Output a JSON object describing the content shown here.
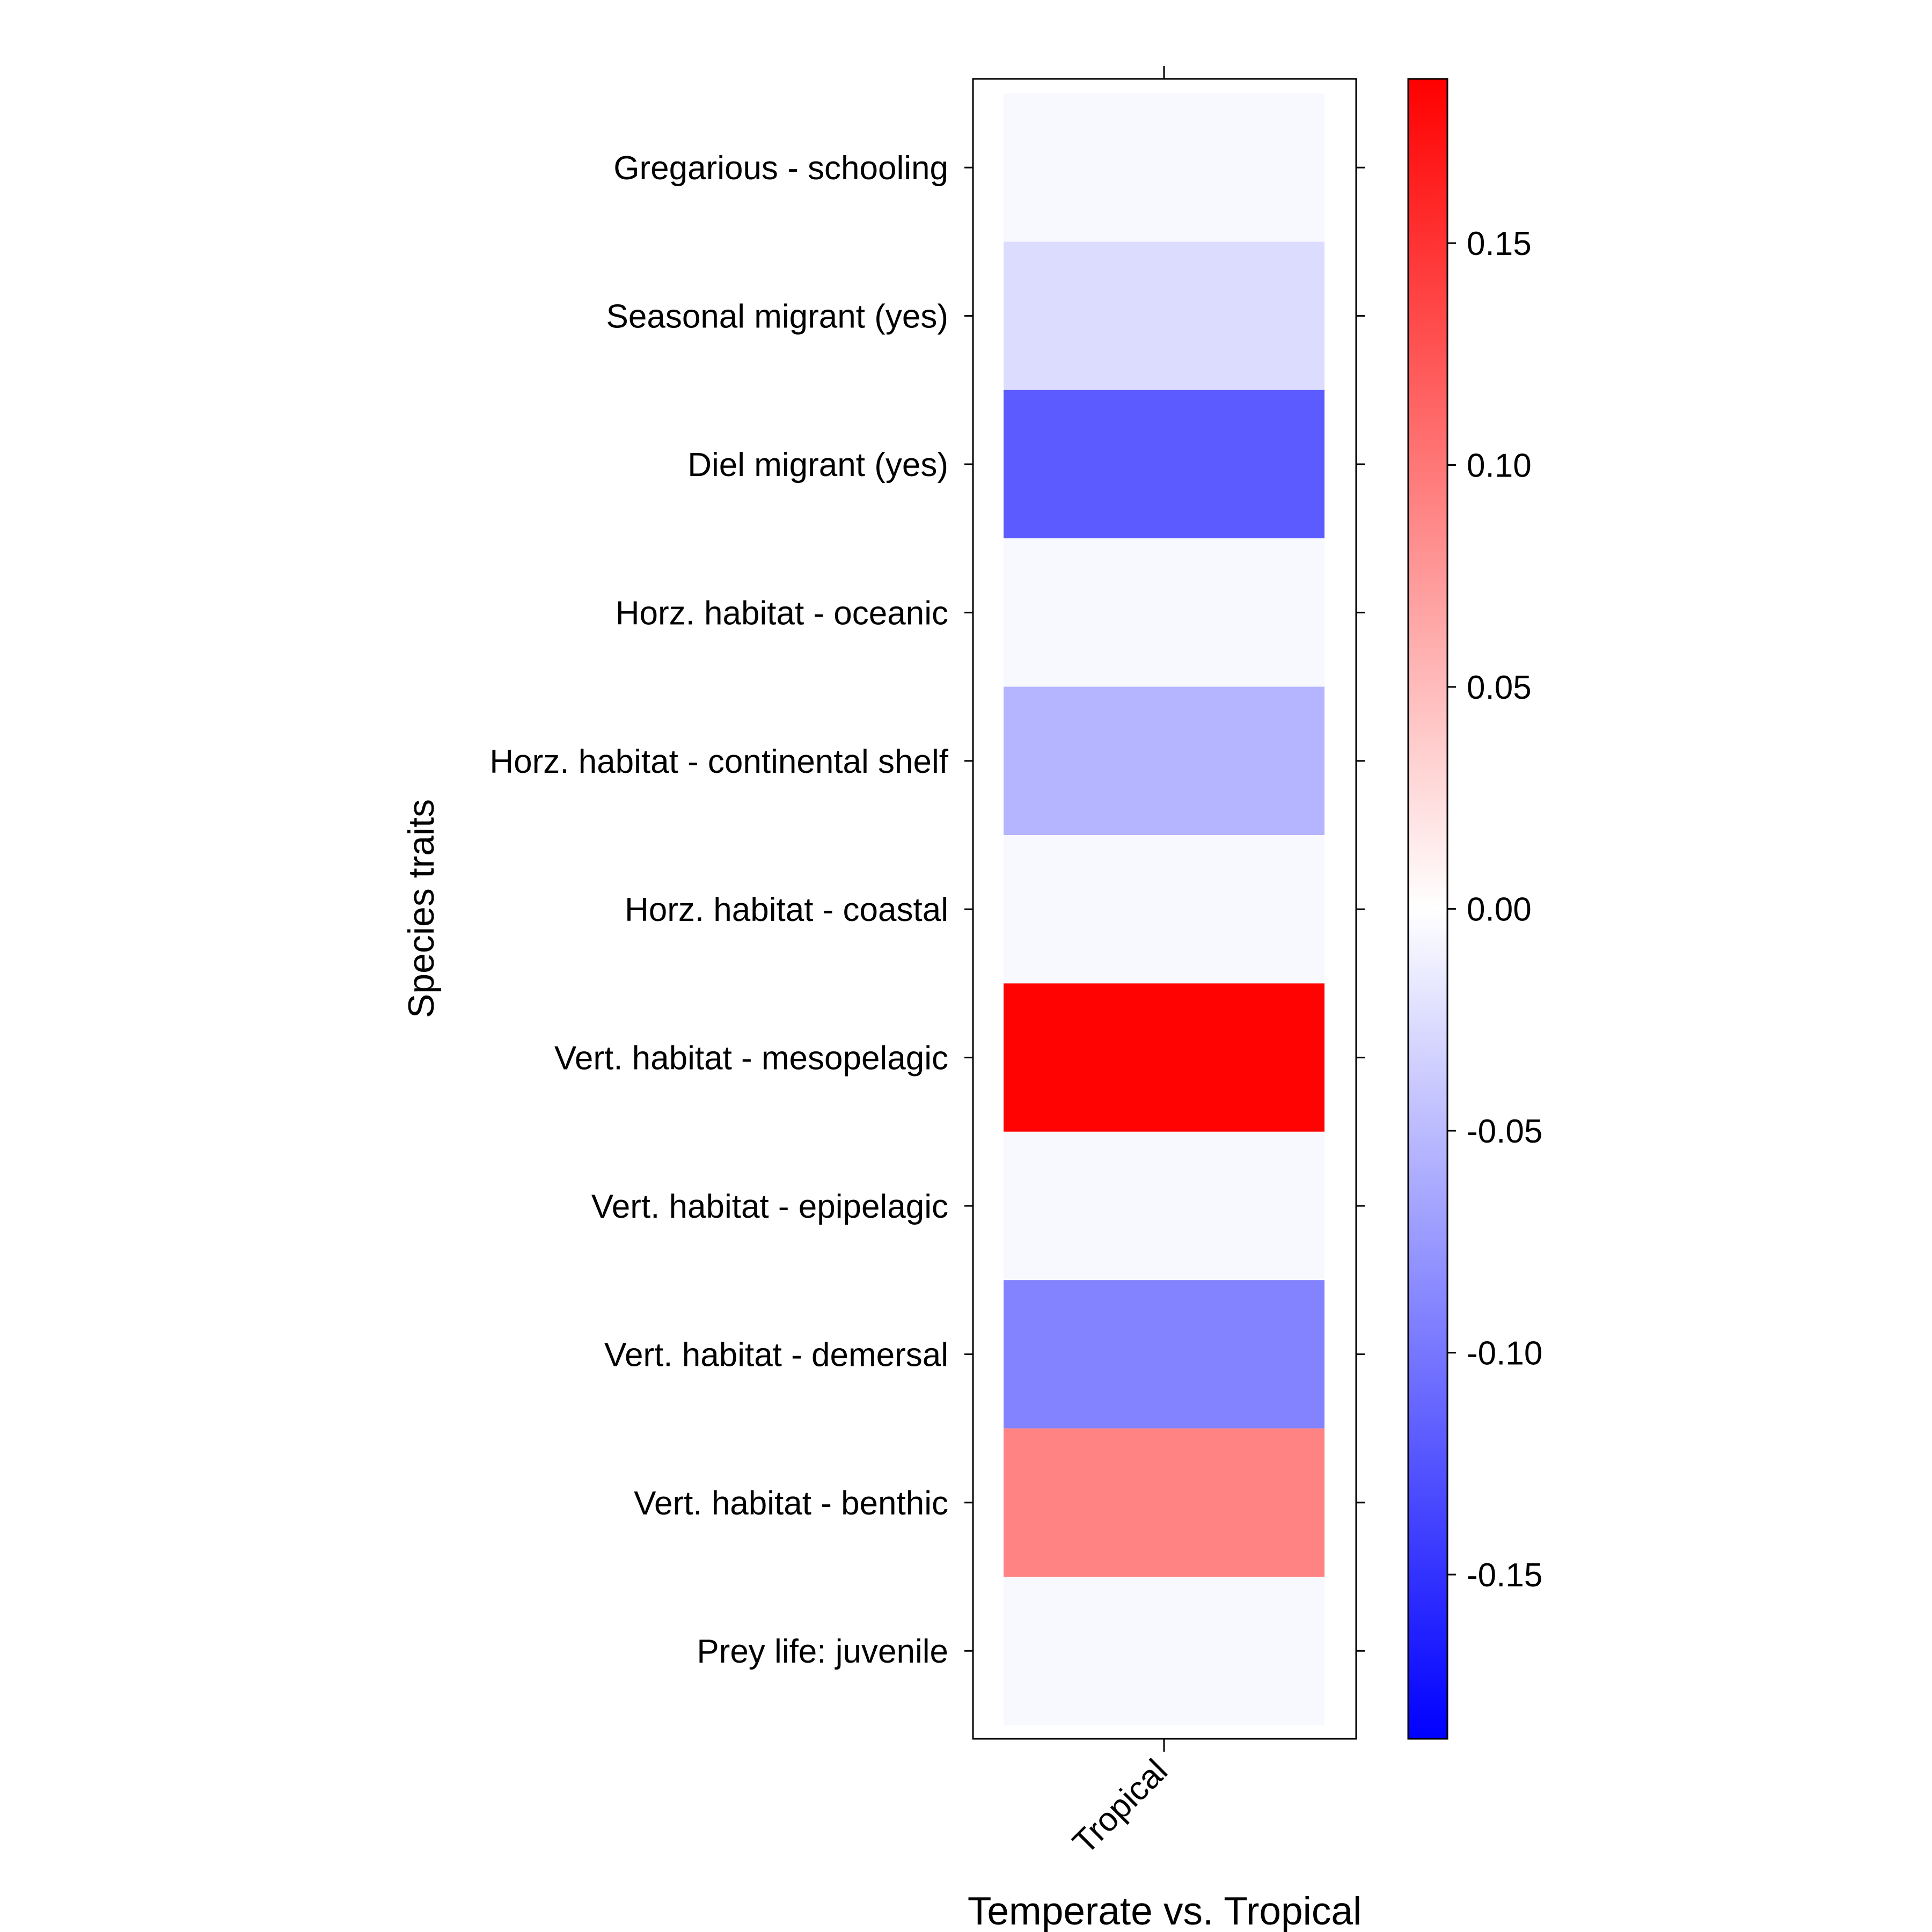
{
  "chart_data": {
    "type": "heatmap",
    "xlabel": "Temperate vs. Tropical",
    "ylabel": "Species traits",
    "columns": [
      "Tropical"
    ],
    "rows": [
      "Gregarious - schooling",
      "Seasonal migrant (yes)",
      "Diel migrant (yes)",
      "Horz. habitat - oceanic",
      "Horz. habitat - continental shelf",
      "Horz. habitat - coastal",
      "Vert. habitat - mesopelagic",
      "Vert. habitat - epipelagic",
      "Vert. habitat - demersal",
      "Vert. habitat - benthic",
      "Prey life: juvenile"
    ],
    "values": [
      0.0,
      -0.026,
      -0.12,
      0.0,
      -0.055,
      0.0,
      0.185,
      0.0,
      -0.091,
      0.091,
      0.0
    ],
    "colorbar": {
      "min": -0.187,
      "max": 0.187,
      "ticks": [
        0.15,
        0.1,
        0.05,
        0.0,
        -0.05,
        -0.1,
        -0.15
      ],
      "tick_labels": [
        "0.15",
        "0.10",
        "0.05",
        "0.00",
        "-0.05",
        "-0.10",
        "-0.15"
      ],
      "low_color": "#0000ff",
      "mid_color": "#ffffff",
      "high_color": "#ff0000"
    },
    "neutral_color": "#f8f8ff"
  }
}
